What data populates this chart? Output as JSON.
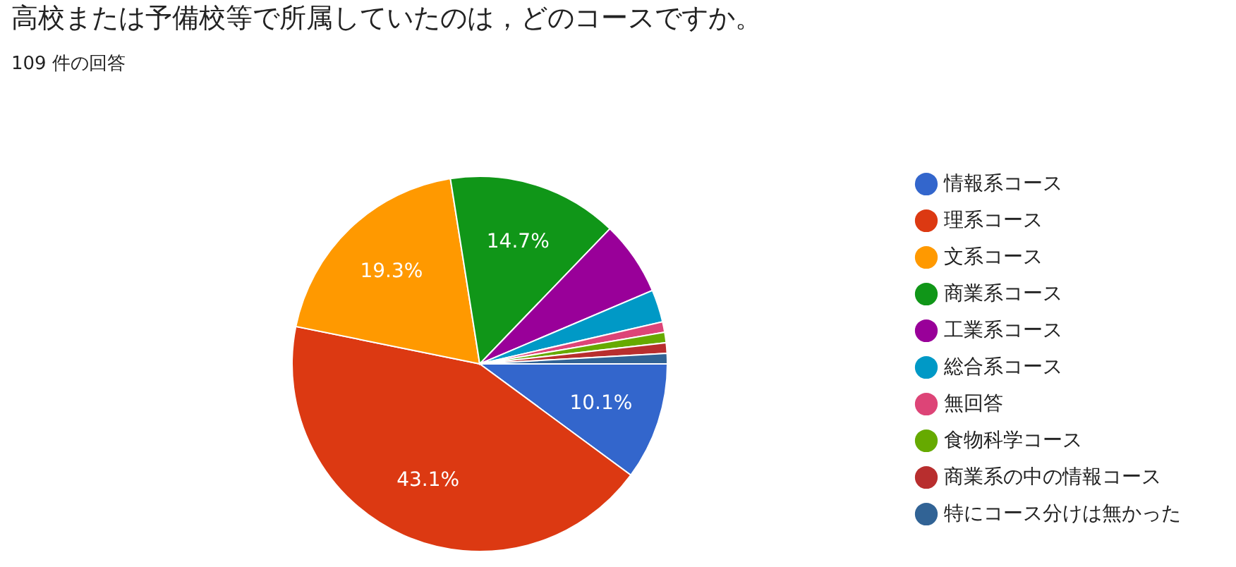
{
  "chart_data": {
    "type": "pie",
    "title": "高校または予備校等で所属していたのは，どのコースですか。",
    "subtitle": "109 件の回答",
    "categories": [
      "情報系コース",
      "理系コース",
      "文系コース",
      "商業系コース",
      "工業系コース",
      "総合系コース",
      "無回答",
      "食物科学コース",
      "商業系の中の情報コース",
      "特にコース分けは無かった"
    ],
    "values": [
      10.1,
      43.1,
      19.3,
      14.7,
      6.4,
      2.8,
      0.9,
      0.9,
      0.9,
      0.9
    ],
    "value_labels": [
      "10.1%",
      "43.1%",
      "19.3%",
      "14.7%",
      null,
      null,
      null,
      null,
      null,
      null
    ],
    "colors": [
      "#3366cc",
      "#dc3912",
      "#ff9900",
      "#109618",
      "#990099",
      "#0099c6",
      "#dd4477",
      "#66aa00",
      "#b82e2e",
      "#316395"
    ],
    "legend": "right"
  }
}
